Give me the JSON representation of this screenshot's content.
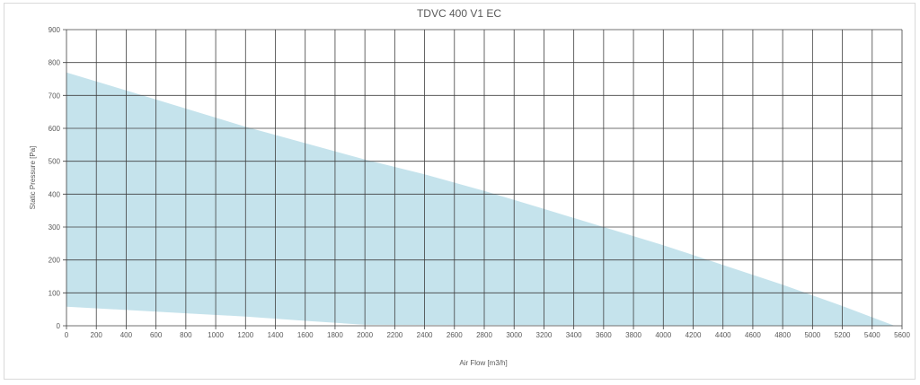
{
  "chart_data": {
    "type": "area",
    "title": "TDVC 400 V1 EC",
    "xlabel": "Air Flow [m3/h]",
    "ylabel": "Static Pressure [Pa]",
    "xlim": [
      0,
      5600
    ],
    "ylim": [
      0,
      900
    ],
    "x_ticks": [
      0,
      200,
      400,
      600,
      800,
      1000,
      1200,
      1400,
      1600,
      1800,
      2000,
      2200,
      2400,
      2600,
      2800,
      3000,
      3200,
      3400,
      3600,
      3800,
      4000,
      4200,
      4400,
      4600,
      4800,
      5000,
      5200,
      5400,
      5600
    ],
    "y_ticks": [
      0,
      100,
      200,
      300,
      400,
      500,
      600,
      700,
      800,
      900
    ],
    "grid": true,
    "fill_color": "#c5e3ec",
    "grid_color": "#404040",
    "upper_curve": {
      "x": [
        0,
        400,
        800,
        1200,
        1600,
        2000,
        2400,
        2800,
        3200,
        3600,
        4000,
        4400,
        4800,
        5200,
        5550
      ],
      "y": [
        770,
        715,
        660,
        605,
        555,
        505,
        460,
        410,
        355,
        300,
        245,
        185,
        125,
        60,
        0
      ]
    },
    "lower_curve": {
      "x": [
        0,
        400,
        800,
        1200,
        1600,
        2000,
        5550
      ],
      "y": [
        58,
        48,
        38,
        28,
        15,
        3,
        0
      ]
    }
  }
}
